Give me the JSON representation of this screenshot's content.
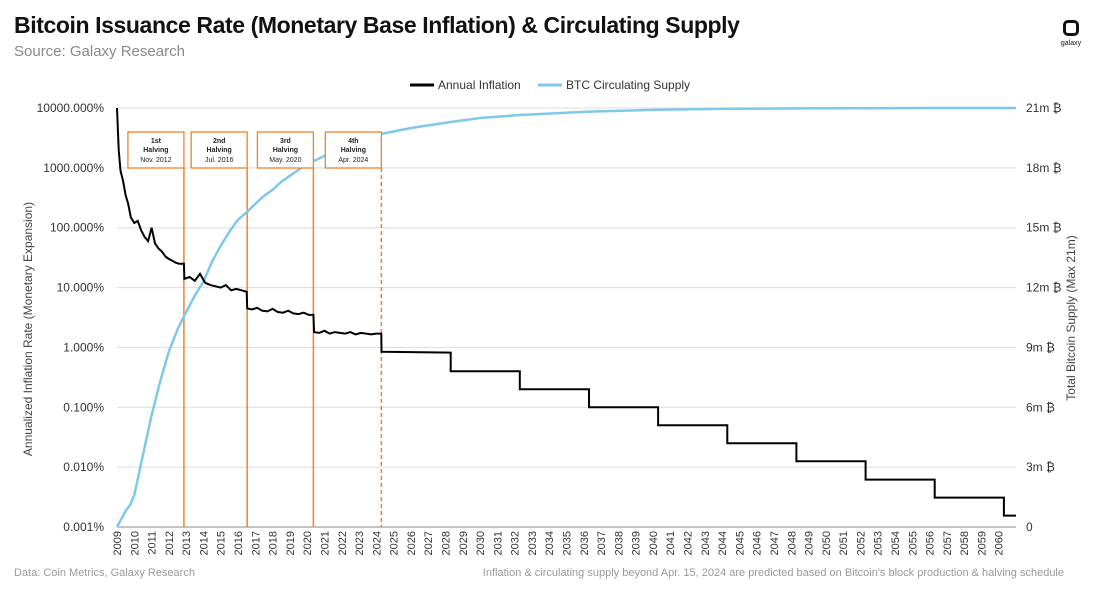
{
  "header": {
    "title": "Bitcoin Issuance Rate (Monetary Base Inflation) & Circulating Supply",
    "subtitle": "Source: Galaxy Research",
    "logo_text": "galaxy"
  },
  "footer": {
    "left": "Data: Coin Metrics, Galaxy Research",
    "right": "Inflation & circulating supply beyond Apr. 15, 2024 are predicted based on Bitcoin's block production & halving schedule"
  },
  "colors": {
    "inflation": "#000000",
    "supply": "#7ec8ea",
    "halving": "#f0832a",
    "grid": "#dddddd"
  },
  "chart_data": {
    "type": "line",
    "title": "Bitcoin Issuance Rate (Monetary Base Inflation) & Circulating Supply",
    "subtitle": "Source: Galaxy Research",
    "ylabel": "Annualized Inflation Rate (Monetary Expansion)",
    "y2label": "Total Bitcoin Supply (Max 21m)",
    "y_scale": "log",
    "ylim": [
      0.001,
      10000
    ],
    "y_ticks": [
      "10000.000%",
      "1000.000%",
      "100.000%",
      "10.000%",
      "1.000%",
      "0.100%",
      "0.010%",
      "0.001%"
    ],
    "y2lim": [
      0,
      21
    ],
    "y2_ticks": [
      "21m ₿",
      "18m ₿",
      "15m ₿",
      "12m ₿",
      "9m ₿",
      "6m ₿",
      "3m ₿",
      "0"
    ],
    "xlim": [
      2009,
      2061
    ],
    "x_ticks": [
      "2009",
      "2010",
      "2011",
      "2012",
      "2013",
      "2014",
      "2015",
      "2016",
      "2017",
      "2018",
      "2019",
      "2020",
      "2021",
      "2022",
      "2023",
      "2024",
      "2025",
      "2026",
      "2027",
      "2028",
      "2029",
      "2030",
      "2031",
      "2032",
      "2033",
      "2034",
      "2035",
      "2036",
      "2037",
      "2038",
      "2039",
      "2040",
      "2041",
      "2042",
      "2043",
      "2044",
      "2045",
      "2046",
      "2047",
      "2048",
      "2049",
      "2050",
      "2051",
      "2052",
      "2053",
      "2054",
      "2055",
      "2056",
      "2057",
      "2058",
      "2059",
      "2060"
    ],
    "legend_position": "top-center",
    "grid": true,
    "series": [
      {
        "name": "Annual Inflation",
        "axis": "left",
        "color": "#000000",
        "x": [
          2009.0,
          2009.1,
          2009.2,
          2009.35,
          2009.5,
          2009.65,
          2009.8,
          2010.0,
          2010.2,
          2010.4,
          2010.6,
          2010.8,
          2011.0,
          2011.2,
          2011.4,
          2011.6,
          2011.8,
          2012.0,
          2012.2,
          2012.4,
          2012.6,
          2012.87,
          2012.9,
          2013.2,
          2013.5,
          2013.8,
          2014.1,
          2014.4,
          2014.7,
          2015.0,
          2015.3,
          2015.6,
          2015.9,
          2016.2,
          2016.5,
          2016.53,
          2016.8,
          2017.1,
          2017.4,
          2017.7,
          2018.0,
          2018.3,
          2018.6,
          2018.9,
          2019.2,
          2019.5,
          2019.8,
          2020.1,
          2020.36,
          2020.4,
          2020.7,
          2021.0,
          2021.3,
          2021.6,
          2021.9,
          2022.2,
          2022.5,
          2022.8,
          2023.1,
          2023.4,
          2023.7,
          2024.0,
          2024.29,
          2024.3,
          2028.3,
          2028.3,
          2032.3,
          2032.3,
          2036.3,
          2036.3,
          2040.3,
          2040.3,
          2044.3,
          2044.3,
          2048.3,
          2048.3,
          2052.3,
          2052.3,
          2056.3,
          2056.3,
          2060.3,
          2060.3,
          2061.0
        ],
        "values": [
          10000,
          2000,
          900,
          600,
          350,
          250,
          150,
          120,
          130,
          90,
          70,
          60,
          100,
          55,
          45,
          40,
          33,
          30,
          28,
          26,
          25,
          25,
          14,
          15,
          13,
          17,
          12,
          11,
          10.5,
          10,
          11,
          9,
          9.5,
          9,
          8.5,
          4.5,
          4.3,
          4.6,
          4.1,
          4.0,
          4.4,
          3.9,
          3.8,
          4.1,
          3.7,
          3.6,
          3.8,
          3.5,
          3.5,
          1.8,
          1.75,
          1.9,
          1.7,
          1.8,
          1.75,
          1.7,
          1.8,
          1.65,
          1.75,
          1.7,
          1.65,
          1.7,
          1.7,
          0.85,
          0.82,
          0.4,
          0.4,
          0.2,
          0.2,
          0.1,
          0.1,
          0.05,
          0.05,
          0.025,
          0.025,
          0.0125,
          0.0125,
          0.0062,
          0.0062,
          0.0031,
          0.0031,
          0.00155,
          0.00155
        ]
      },
      {
        "name": "BTC Circulating Supply",
        "axis": "right",
        "color": "#7ec8ea",
        "x": [
          2009.0,
          2009.25,
          2009.5,
          2009.75,
          2010.0,
          2010.5,
          2011.0,
          2011.5,
          2012.0,
          2012.5,
          2012.9,
          2013.5,
          2014.0,
          2014.5,
          2015.0,
          2015.5,
          2016.0,
          2016.53,
          2017.0,
          2017.5,
          2018.0,
          2018.5,
          2019.0,
          2019.5,
          2020.0,
          2020.4,
          2021.0,
          2022.0,
          2023.0,
          2024.3,
          2026.0,
          2028.3,
          2030.0,
          2032.3,
          2036.3,
          2040.3,
          2044.3,
          2048.3,
          2052.3,
          2056.3,
          2061.0
        ],
        "values": [
          0,
          0.4,
          0.8,
          1.1,
          1.6,
          3.6,
          5.6,
          7.3,
          8.8,
          9.9,
          10.6,
          11.6,
          12.3,
          13.3,
          14.1,
          14.8,
          15.4,
          15.8,
          16.2,
          16.6,
          16.9,
          17.3,
          17.6,
          17.9,
          18.2,
          18.35,
          18.6,
          19.0,
          19.4,
          19.7,
          20.0,
          20.3,
          20.5,
          20.65,
          20.82,
          20.91,
          20.96,
          20.98,
          20.99,
          21.0,
          21.0
        ]
      }
    ],
    "annotations": [
      {
        "x": 2012.87,
        "line_style": "solid",
        "label_1": "1st",
        "label_2": "Halving",
        "label_3": "Nov. 2012"
      },
      {
        "x": 2016.53,
        "line_style": "solid",
        "label_1": "2nd",
        "label_2": "Halving",
        "label_3": "Jul. 2016"
      },
      {
        "x": 2020.36,
        "line_style": "solid",
        "label_1": "3rd",
        "label_2": "Halving",
        "label_3": "May. 2020"
      },
      {
        "x": 2024.29,
        "line_style": "dashed",
        "label_1": "4th",
        "label_2": "Halving",
        "label_3": "Apr. 2024"
      }
    ]
  }
}
